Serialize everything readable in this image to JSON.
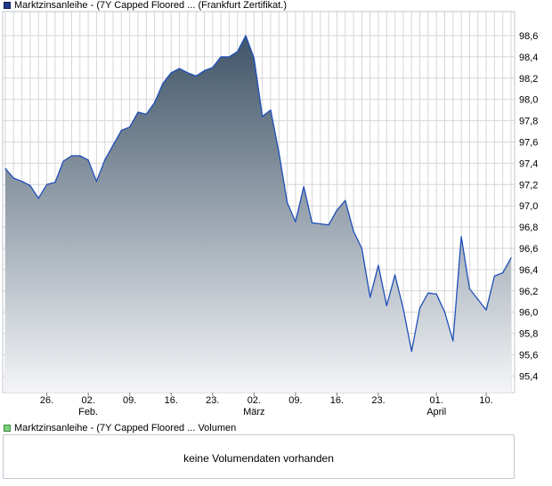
{
  "legend": {
    "price_label": "Marktzinsanleihe - (7Y Capped Floored ... (Frankfurt Zertifikat.)",
    "volume_label": "Marktzinsanleihe - (7Y Capped Floored ... Volumen"
  },
  "volume_panel": {
    "message": "keine Volumendaten vorhanden"
  },
  "colors": {
    "line": "#1f4fb8",
    "fill_top": "#3f5468",
    "fill_bottom": "#f4f5f7",
    "grid": "#d6d6d6"
  },
  "chart_data": {
    "type": "area",
    "title": "",
    "xlabel": "",
    "ylabel": "",
    "ylim": [
      95.25,
      98.75
    ],
    "y_ticks": [
      "95,4",
      "95,6",
      "95,8",
      "96,0",
      "96,2",
      "96,4",
      "96,6",
      "96,8",
      "97,0",
      "97,2",
      "97,4",
      "97,6",
      "97,8",
      "98,0",
      "98,2",
      "98,4",
      "98,6"
    ],
    "x_tick_labels": [
      "26.",
      "02.",
      "09.",
      "16.",
      "23.",
      "02.",
      "09.",
      "16.",
      "23.",
      "01.",
      "10."
    ],
    "month_labels": [
      "Feb.",
      "März",
      "April"
    ],
    "x": [
      "19.01.",
      "20.01.",
      "21.01.",
      "22.01.",
      "23.01.",
      "26.01.",
      "27.01.",
      "28.01.",
      "29.01.",
      "30.01.",
      "02.02.",
      "03.02.",
      "04.02.",
      "05.02.",
      "06.02.",
      "09.02.",
      "10.02.",
      "11.02.",
      "12.02.",
      "13.02.",
      "16.02.",
      "17.02.",
      "18.02.",
      "19.02.",
      "20.02.",
      "23.02.",
      "24.02.",
      "25.02.",
      "26.02.",
      "27.02.",
      "02.03.",
      "03.03.",
      "04.03.",
      "05.03.",
      "06.03.",
      "09.03.",
      "10.03.",
      "11.03.",
      "12.03.",
      "13.03.",
      "16.03.",
      "17.03.",
      "18.03.",
      "19.03.",
      "20.03.",
      "23.03.",
      "24.03.",
      "25.03.",
      "26.03.",
      "27.03.",
      "30.03.",
      "31.03.",
      "01.04.",
      "02.04.",
      "03.04.",
      "07.04.",
      "08.04.",
      "09.04.",
      "10.04.",
      "13.04.",
      "14.04.",
      "15.04."
    ],
    "series": [
      {
        "values": [
          97.35,
          97.26,
          97.23,
          97.19,
          97.07,
          97.2,
          97.22,
          97.42,
          97.47,
          97.47,
          97.43,
          97.23,
          97.43,
          97.57,
          97.71,
          97.74,
          97.88,
          97.86,
          97.97,
          98.15,
          98.25,
          98.29,
          98.25,
          98.22,
          98.27,
          98.3,
          98.4,
          98.4,
          98.45,
          98.6,
          98.39,
          97.84,
          97.9,
          97.5,
          97.03,
          96.85,
          97.18,
          96.84,
          96.83,
          96.82,
          96.96,
          97.05,
          96.76,
          96.6,
          96.14,
          96.44,
          96.06,
          96.35,
          96.03,
          95.63,
          96.04,
          96.18,
          96.17,
          96.0,
          95.73,
          96.71,
          96.22,
          96.12,
          96.02,
          96.34,
          96.37,
          96.51
        ]
      }
    ]
  }
}
